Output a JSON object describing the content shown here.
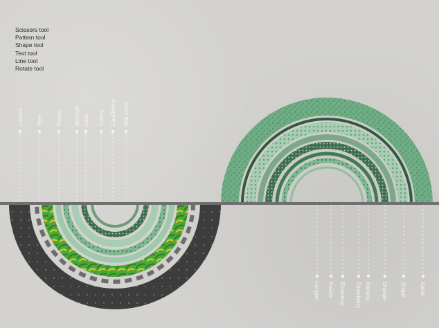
{
  "tools": [
    "Scissors tool",
    "Pattern tool",
    "Shape tool",
    "Text tool",
    "Line tool",
    "Rotate tool"
  ],
  "left_labels": [
    "Lettuce",
    "Beet",
    "Potato",
    "Broccoli",
    "Leek",
    "Celery",
    "Cauliflower",
    "Bok Choy"
  ],
  "right_labels": [
    "Longan",
    "Peach",
    "Blueberry",
    "Strawberry",
    "Banana",
    "Orange",
    "Grape",
    "Apple"
  ],
  "colors": {
    "background": "#d3d2cf",
    "axis": "#6f6f6f",
    "dark_ring": "#3e3e3e",
    "green_main": "#7db890",
    "green_light": "#9ec9aa",
    "green_dark": "#3f7a55",
    "bright_green": "#4aa83a",
    "yellow": "#e8c62a",
    "label": "#f4f4f2"
  }
}
